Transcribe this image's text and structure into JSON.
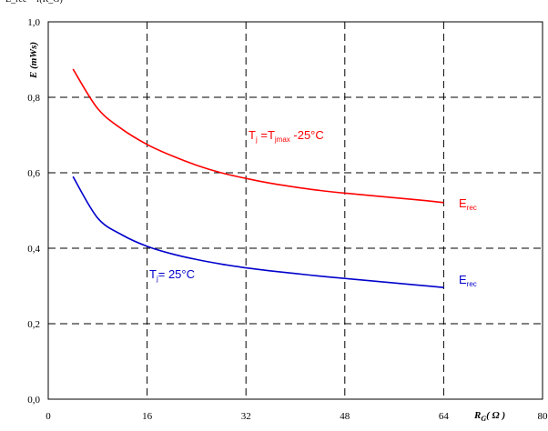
{
  "corner_text": "E_rec = f(R_G)",
  "chart_data": {
    "type": "line",
    "title": "",
    "xlabel": {
      "main": "R",
      "sub": "G",
      "unit": "( Ω )"
    },
    "ylabel": "E (mWs)",
    "xlim": [
      0,
      80
    ],
    "ylim": [
      0,
      1.0
    ],
    "xticks": [
      0,
      16,
      32,
      48,
      64,
      80
    ],
    "xtick_labels": [
      "0",
      "16",
      "32",
      "48",
      "64",
      "80"
    ],
    "yticks": [
      0,
      0.2,
      0.4,
      0.6,
      0.8,
      1.0
    ],
    "ytick_labels": [
      "0,0",
      "0,2",
      "0,4",
      "0,6",
      "0,8",
      "1,0"
    ],
    "grid": true,
    "series": [
      {
        "id": "hot",
        "color": "#ff0000",
        "x": [
          4,
          8,
          12,
          16,
          20,
          24,
          28,
          32,
          36,
          40,
          44,
          48,
          52,
          56,
          60,
          64
        ],
        "y": [
          0.875,
          0.77,
          0.715,
          0.675,
          0.645,
          0.62,
          0.6,
          0.585,
          0.572,
          0.562,
          0.553,
          0.546,
          0.54,
          0.534,
          0.528,
          0.521
        ]
      },
      {
        "id": "cold",
        "color": "#0000cc",
        "x": [
          4,
          8,
          12,
          16,
          20,
          24,
          28,
          32,
          36,
          40,
          44,
          48,
          52,
          56,
          60,
          64
        ],
        "y": [
          0.59,
          0.48,
          0.435,
          0.405,
          0.385,
          0.37,
          0.358,
          0.348,
          0.34,
          0.333,
          0.326,
          0.32,
          0.314,
          0.308,
          0.302,
          0.296
        ]
      }
    ],
    "annotations": [
      {
        "id": "tj-hot",
        "color": "#ff0000",
        "parts": [
          "T",
          "j",
          " =T",
          "jmax",
          " -25°C"
        ]
      },
      {
        "id": "erec-hot",
        "color": "#ff0000",
        "parts": [
          "E",
          "rec"
        ]
      },
      {
        "id": "tj-cold",
        "color": "#0000cc",
        "parts": [
          "T",
          "j",
          "= 25°C"
        ]
      },
      {
        "id": "erec-cold",
        "color": "#0000cc",
        "parts": [
          "E",
          "rec"
        ]
      }
    ]
  }
}
